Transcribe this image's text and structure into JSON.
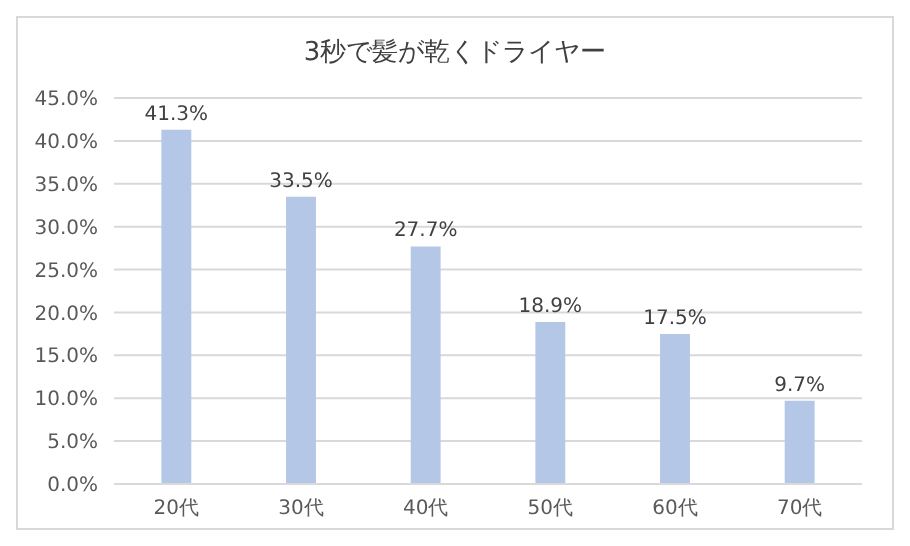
{
  "chart_data": {
    "type": "bar",
    "title": "3秒で髪が乾くドライヤー",
    "categories": [
      "20代",
      "30代",
      "40代",
      "50代",
      "60代",
      "70代"
    ],
    "values": [
      41.3,
      33.5,
      27.7,
      18.9,
      17.5,
      9.7
    ],
    "value_labels": [
      "41.3%",
      "33.5%",
      "27.7%",
      "18.9%",
      "17.5%",
      "9.7%"
    ],
    "color": "#b4c7e7",
    "ylim": [
      0,
      45
    ],
    "yticks": [
      {
        "value": 0,
        "label": "0.0%"
      },
      {
        "value": 5,
        "label": "5.0%"
      },
      {
        "value": 10,
        "label": "10.0%"
      },
      {
        "value": 15,
        "label": "15.0%"
      },
      {
        "value": 20,
        "label": "20.0%"
      },
      {
        "value": 25,
        "label": "25.0%"
      },
      {
        "value": 30,
        "label": "30.0%"
      },
      {
        "value": 35,
        "label": "35.0%"
      },
      {
        "value": 40,
        "label": "40.0%"
      },
      {
        "value": 45,
        "label": "45.0%"
      }
    ],
    "grid": "y"
  }
}
